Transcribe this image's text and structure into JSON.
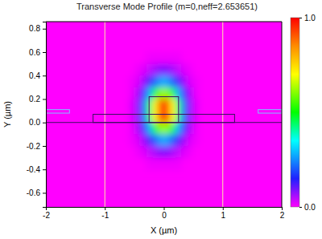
{
  "chart_data": {
    "type": "heatmap",
    "title": "Transverse Mode Profile (m=0,neff=2.653651)",
    "x_label": "X (µm)",
    "y_label": "Y (µm)",
    "xlim": [
      -2,
      2
    ],
    "ylim": [
      -0.72,
      0.86
    ],
    "xticks": [
      -2,
      -1,
      0,
      1,
      2
    ],
    "yticks": [
      -0.6,
      -0.4,
      -0.2,
      {
        "value": 0,
        "label": "0.0"
      },
      0.2,
      0.4,
      0.6,
      0.8
    ],
    "x": [
      -0.65,
      -0.55,
      -0.45,
      -0.35,
      -0.25,
      -0.15,
      -0.05,
      0.05,
      0.15,
      0.25,
      0.35,
      0.45,
      0.55,
      0.65
    ],
    "y": [
      0.55,
      0.45,
      0.35,
      0.25,
      0.15,
      0.05,
      -0.05,
      -0.15,
      -0.25,
      -0.35
    ],
    "z": [
      [
        0,
        0,
        0,
        0,
        0.01,
        0.01,
        0.01,
        0.01,
        0.01,
        0.01,
        0,
        0,
        0,
        0
      ],
      [
        0,
        0,
        0.01,
        0.02,
        0.04,
        0.06,
        0.08,
        0.08,
        0.06,
        0.04,
        0.02,
        0.01,
        0,
        0
      ],
      [
        0,
        0.01,
        0.02,
        0.06,
        0.12,
        0.21,
        0.27,
        0.27,
        0.21,
        0.12,
        0.06,
        0.02,
        0.01,
        0
      ],
      [
        0,
        0.01,
        0.05,
        0.13,
        0.28,
        0.47,
        0.61,
        0.61,
        0.47,
        0.28,
        0.13,
        0.05,
        0.01,
        0
      ],
      [
        0,
        0.02,
        0.07,
        0.2,
        0.43,
        0.71,
        0.92,
        0.92,
        0.71,
        0.43,
        0.2,
        0.07,
        0.02,
        0
      ],
      [
        0,
        0.02,
        0.07,
        0.2,
        0.43,
        0.71,
        0.92,
        0.92,
        0.71,
        0.43,
        0.2,
        0.07,
        0.02,
        0
      ],
      [
        0,
        0.01,
        0.05,
        0.13,
        0.28,
        0.47,
        0.61,
        0.61,
        0.47,
        0.28,
        0.13,
        0.05,
        0.01,
        0
      ],
      [
        0,
        0.01,
        0.02,
        0.06,
        0.12,
        0.21,
        0.27,
        0.27,
        0.21,
        0.12,
        0.06,
        0.02,
        0.01,
        0
      ],
      [
        0,
        0,
        0.01,
        0.02,
        0.04,
        0.06,
        0.08,
        0.08,
        0.06,
        0.04,
        0.02,
        0.01,
        0,
        0
      ],
      [
        0,
        0,
        0,
        0,
        0.01,
        0.01,
        0.01,
        0.01,
        0.01,
        0.01,
        0,
        0,
        0,
        0
      ]
    ],
    "colorbar_range": [
      0,
      1
    ],
    "colorbar_ticks": [
      {
        "value": 0,
        "label": "0.0"
      },
      {
        "value": 1,
        "label": "1.0"
      }
    ],
    "outlines": [
      {
        "x": [
          -1.2,
          1.2
        ],
        "y": [
          0,
          0.07
        ],
        "color": "#3a1060"
      },
      {
        "x": [
          -0.25,
          0.25
        ],
        "y": [
          0,
          0.22
        ],
        "color": "#3a1060"
      },
      {
        "x": [
          -2,
          -1.6
        ],
        "y": [
          0.08,
          0.11
        ],
        "color": "#7fc4ff"
      },
      {
        "x": [
          1.6,
          2
        ],
        "y": [
          0.08,
          0.11
        ],
        "color": "#7fc4ff"
      }
    ],
    "vlines": [
      -1,
      1
    ],
    "vline_color": "#ffe8a8",
    "hlines": [
      0
    ],
    "hline_color": "#3a1060"
  }
}
